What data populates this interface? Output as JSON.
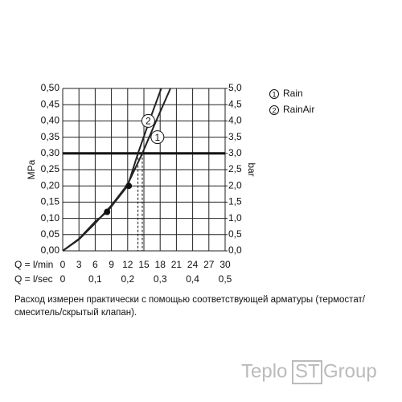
{
  "chart_data": {
    "type": "line",
    "y_label": "MPa",
    "y2_label": "bar",
    "x_row_label": "Q = l/min",
    "x2_row_label": "Q = l/sec",
    "xlim": [
      0,
      30
    ],
    "xticks": [
      0,
      3,
      6,
      9,
      12,
      15,
      18,
      21,
      24,
      27,
      30
    ],
    "x2lim": [
      0,
      0.5
    ],
    "x2ticks": [
      0,
      {
        "value": 0.1,
        "label": "0,1"
      },
      {
        "value": 0.2,
        "label": "0,2"
      },
      {
        "value": 0.3,
        "label": "0,3"
      },
      {
        "value": 0.4,
        "label": "0,4"
      },
      {
        "value": 0.5,
        "label": "0,5"
      }
    ],
    "ylim": [
      0,
      0.5
    ],
    "yticks": [
      {
        "value": 0,
        "label": "0,00"
      },
      {
        "value": 0.05,
        "label": "0,05"
      },
      {
        "value": 0.1,
        "label": "0,10"
      },
      {
        "value": 0.15,
        "label": "0,15"
      },
      {
        "value": 0.2,
        "label": "0,20"
      },
      {
        "value": 0.25,
        "label": "0,25"
      },
      {
        "value": 0.3,
        "label": "0,30"
      },
      {
        "value": 0.35,
        "label": "0,35"
      },
      {
        "value": 0.4,
        "label": "0,40"
      },
      {
        "value": 0.45,
        "label": "0,45"
      },
      {
        "value": 0.5,
        "label": "0,50"
      }
    ],
    "y2lim": [
      0,
      5
    ],
    "y2ticks": [
      {
        "value": 0,
        "label": "0,0"
      },
      {
        "value": 0.5,
        "label": "0,5"
      },
      {
        "value": 1,
        "label": "1,0"
      },
      {
        "value": 1.5,
        "label": "1,5"
      },
      {
        "value": 2,
        "label": "2,0"
      },
      {
        "value": 2.5,
        "label": "2,5"
      },
      {
        "value": 3,
        "label": "3,0"
      },
      {
        "value": 3.5,
        "label": "3,5"
      },
      {
        "value": 4,
        "label": "4,0"
      },
      {
        "value": 4.5,
        "label": "4,5"
      },
      {
        "value": 5,
        "label": "5,0"
      }
    ],
    "grid": true,
    "reference_y": 0.3,
    "reference_x": [
      13.9,
      14.7
    ],
    "series": [
      {
        "name": "Rain",
        "number": "1",
        "color": "#222222",
        "x": [
          0,
          3,
          6,
          9,
          12,
          14.7,
          17,
          19.9
        ],
        "values": [
          0,
          0.035,
          0.085,
          0.14,
          0.205,
          0.3,
          0.39,
          0.5
        ],
        "marker_x": 17.5,
        "marker_y": 0.35
      },
      {
        "name": "RainAir",
        "number": "2",
        "color": "#222222",
        "x": [
          0,
          3,
          6,
          8.2,
          12,
          13.9,
          16,
          18.2
        ],
        "values": [
          0,
          0.037,
          0.09,
          0.12,
          0.2,
          0.3,
          0.4,
          0.5
        ],
        "marker_x": 15.8,
        "marker_y": 0.4
      }
    ],
    "points": {
      "x": [
        8.2,
        12.2
      ],
      "values": [
        0.12,
        0.2
      ]
    },
    "footnote": [
      "Расход измерен практически с помощью соответствующей арматуры (термостат/",
      "смеситель/скрытый клапан)."
    ],
    "watermark": [
      "Teplo",
      "ST",
      "Group"
    ]
  }
}
